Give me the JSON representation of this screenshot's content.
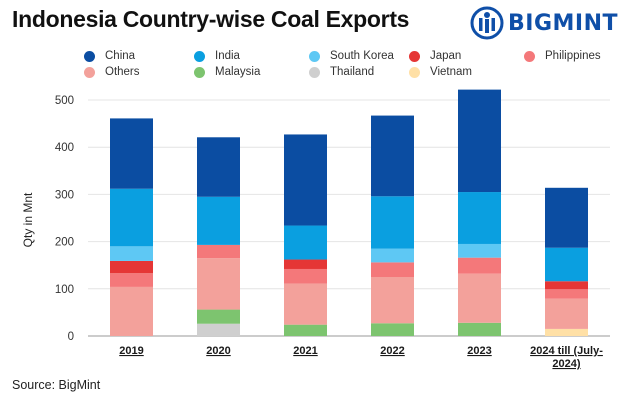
{
  "header": {
    "title": "Indonesia Country-wise Coal Exports",
    "logo_text": "BIGMINT"
  },
  "footer": {
    "source": "Source: BigMint"
  },
  "chart_data": {
    "type": "bar",
    "stacked": true,
    "title": "Indonesia Country-wise Coal Exports",
    "xlabel": "",
    "ylabel": "Qty in Mnt",
    "ylim": [
      0,
      500
    ],
    "yticks": [
      0,
      100,
      200,
      300,
      400,
      500
    ],
    "grid": true,
    "legend_position": "top",
    "categories": [
      "2019",
      "2020",
      "2021",
      "2022",
      "2023",
      "2024 till (July-2024)"
    ],
    "category_lines": [
      [
        "2019"
      ],
      [
        "2020"
      ],
      [
        "2021"
      ],
      [
        "2022"
      ],
      [
        "2023"
      ],
      [
        "2024 till (July-",
        "2024)"
      ]
    ],
    "series": [
      {
        "name": "Vietnam",
        "color": "#ffe0a6",
        "values": [
          0,
          0,
          0,
          0,
          0,
          15
        ]
      },
      {
        "name": "Thailand",
        "color": "#cfcfcf",
        "values": [
          0,
          26,
          0,
          0,
          0,
          0
        ]
      },
      {
        "name": "Malaysia",
        "color": "#7dc46f",
        "values": [
          0,
          30,
          24,
          27,
          28,
          0
        ]
      },
      {
        "name": "Others",
        "color": "#f3a19b",
        "values": [
          104,
          109,
          87,
          98,
          104,
          64
        ]
      },
      {
        "name": "Philippines",
        "color": "#f4787a",
        "values": [
          29,
          28,
          31,
          31,
          34,
          20
        ]
      },
      {
        "name": "Japan",
        "color": "#e53635",
        "values": [
          26,
          0,
          20,
          0,
          0,
          17
        ]
      },
      {
        "name": "South Korea",
        "color": "#5ec8f4",
        "values": [
          31,
          0,
          0,
          29,
          29,
          0
        ]
      },
      {
        "name": "India",
        "color": "#0a9fe0",
        "values": [
          122,
          102,
          72,
          111,
          110,
          71
        ]
      },
      {
        "name": "China",
        "color": "#0b4da2",
        "values": [
          149,
          126,
          193,
          171,
          217,
          127
        ]
      }
    ],
    "legend_order": [
      "China",
      "India",
      "South Korea",
      "Japan",
      "Philippines",
      "Others",
      "Malaysia",
      "Thailand",
      "Vietnam"
    ]
  }
}
